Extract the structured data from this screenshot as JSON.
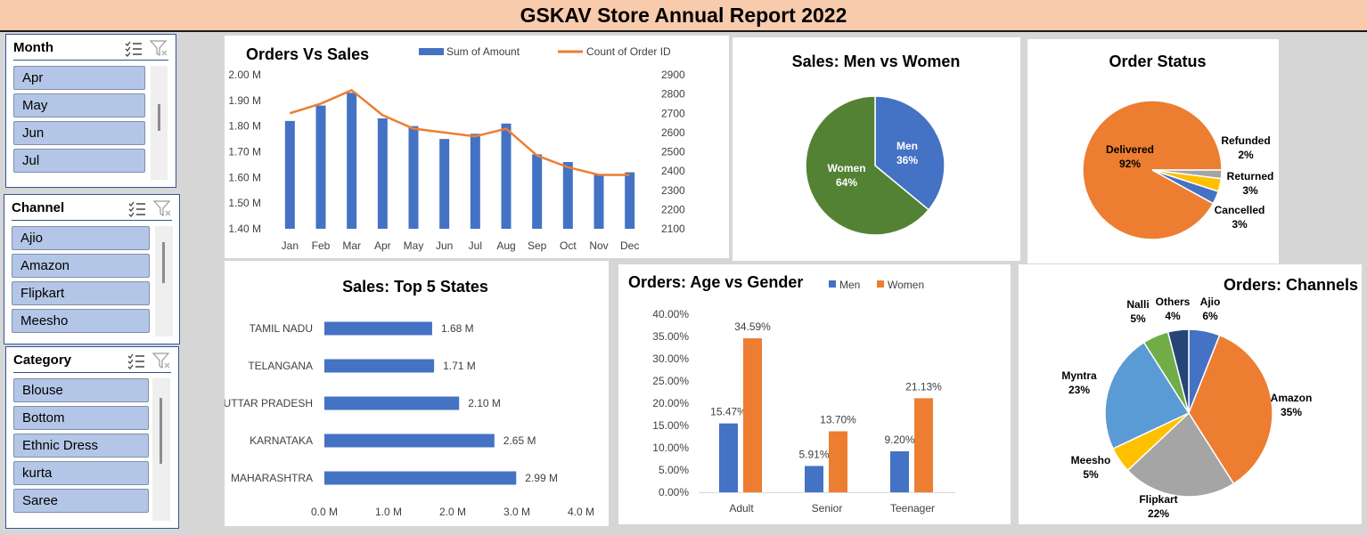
{
  "title": "GSKAV Store Annual Report 2022",
  "slicers": {
    "month": {
      "title": "Month",
      "items": [
        "Apr",
        "May",
        "Jun",
        "Jul"
      ]
    },
    "channel": {
      "title": "Channel",
      "items": [
        "Ajio",
        "Amazon",
        "Flipkart",
        "Meesho"
      ]
    },
    "category": {
      "title": "Category",
      "items": [
        "Blouse",
        "Bottom",
        "Ethnic Dress",
        "kurta",
        "Saree"
      ]
    }
  },
  "icons": {
    "multiselect": "multi-select-icon",
    "clear_filter": "clear-filter-icon"
  },
  "colors": {
    "blue": "#4472c4",
    "orange": "#ed7d31",
    "gray": "#a5a5a5",
    "yellow": "#ffc000",
    "lightblue": "#5b9bd5",
    "green": "#70ad47",
    "navy": "#264478",
    "darkgreen": "#548235",
    "title_bar": "#f8cbad"
  },
  "chart_data": [
    {
      "id": "orders-vs-sales",
      "type": "bar",
      "title": "Orders Vs Sales",
      "categories": [
        "Jan",
        "Feb",
        "Mar",
        "Apr",
        "May",
        "Jun",
        "Jul",
        "Aug",
        "Sep",
        "Oct",
        "Nov",
        "Dec"
      ],
      "series": [
        {
          "name": "Sum of Amount",
          "type": "bar",
          "axis": "left",
          "values": [
            1.82,
            1.88,
            1.93,
            1.83,
            1.8,
            1.75,
            1.77,
            1.81,
            1.69,
            1.66,
            1.61,
            1.62
          ]
        },
        {
          "name": "Count of Order ID",
          "type": "line",
          "axis": "right",
          "values": [
            2700,
            2750,
            2820,
            2690,
            2620,
            2600,
            2580,
            2620,
            2480,
            2420,
            2380,
            2380
          ]
        }
      ],
      "yticks_left": [
        "1.40 M",
        "1.50 M",
        "1.60 M",
        "1.70 M",
        "1.80 M",
        "1.90 M",
        "2.00 M"
      ],
      "yticks_right": [
        "2100",
        "2200",
        "2300",
        "2400",
        "2500",
        "2600",
        "2700",
        "2800",
        "2900"
      ],
      "ylim_left": [
        1.4,
        2.0
      ],
      "ylim_right": [
        2100,
        2900
      ],
      "legend": "top"
    },
    {
      "id": "sales-men-women",
      "type": "pie",
      "title": "Sales: Men vs Women",
      "slices": [
        {
          "name": "Men",
          "label": "36%",
          "value": 36,
          "color": "#4472c4"
        },
        {
          "name": "Women",
          "label": "64%",
          "value": 64,
          "color": "#548235"
        }
      ]
    },
    {
      "id": "order-status",
      "type": "pie",
      "title": "Order Status",
      "slices": [
        {
          "name": "Delivered",
          "label": "92%",
          "value": 92,
          "color": "#ed7d31"
        },
        {
          "name": "Refunded",
          "label": "2%",
          "value": 2,
          "color": "#a5a5a5"
        },
        {
          "name": "Returned",
          "label": "3%",
          "value": 3,
          "color": "#ffc000"
        },
        {
          "name": "Cancelled",
          "label": "3%",
          "value": 3,
          "color": "#4472c4"
        }
      ]
    },
    {
      "id": "top-5-states",
      "type": "bar",
      "orientation": "horizontal",
      "title": "Sales: Top 5 States",
      "categories": [
        "TAMIL NADU",
        "TELANGANA",
        "UTTAR PRADESH",
        "KARNATAKA",
        "MAHARASHTRA"
      ],
      "values": [
        1.68,
        1.71,
        2.1,
        2.65,
        2.99
      ],
      "value_labels": [
        "1.68 M",
        "1.71 M",
        "2.10 M",
        "2.65 M",
        "2.99 M"
      ],
      "xticks": [
        "0.0 M",
        "1.0 M",
        "2.0 M",
        "3.0 M",
        "4.0 M"
      ],
      "xlim": [
        0,
        4
      ]
    },
    {
      "id": "age-vs-gender",
      "type": "bar",
      "title": "Orders: Age vs Gender",
      "categories": [
        "Adult",
        "Senior",
        "Teenager"
      ],
      "series": [
        {
          "name": "Men",
          "values": [
            15.47,
            5.91,
            9.2
          ],
          "labels": [
            "15.47%",
            "5.91%",
            "9.20%"
          ],
          "color": "#4472c4"
        },
        {
          "name": "Women",
          "values": [
            34.59,
            13.7,
            21.13
          ],
          "labels": [
            "34.59%",
            "13.70%",
            "21.13%"
          ],
          "color": "#ed7d31"
        }
      ],
      "yticks": [
        "0.00%",
        "5.00%",
        "10.00%",
        "15.00%",
        "20.00%",
        "25.00%",
        "30.00%",
        "35.00%",
        "40.00%"
      ],
      "ylim": [
        0,
        40
      ],
      "legend": "top"
    },
    {
      "id": "orders-channels",
      "type": "pie",
      "title": "Orders: Channels",
      "slices": [
        {
          "name": "Ajio",
          "label": "6%",
          "value": 6,
          "color": "#4472c4"
        },
        {
          "name": "Amazon",
          "label": "35%",
          "value": 35,
          "color": "#ed7d31"
        },
        {
          "name": "Flipkart",
          "label": "22%",
          "value": 22,
          "color": "#a5a5a5"
        },
        {
          "name": "Meesho",
          "label": "5%",
          "value": 5,
          "color": "#ffc000"
        },
        {
          "name": "Myntra",
          "label": "23%",
          "value": 23,
          "color": "#5b9bd5"
        },
        {
          "name": "Nalli",
          "label": "5%",
          "value": 5,
          "color": "#70ad47"
        },
        {
          "name": "Others",
          "label": "4%",
          "value": 4,
          "color": "#264478"
        }
      ]
    }
  ]
}
